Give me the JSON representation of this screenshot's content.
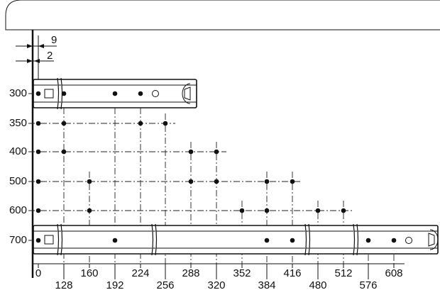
{
  "dimensions": {
    "offset_a": "9",
    "offset_b": "2"
  },
  "rows": [
    "300",
    "350",
    "400",
    "500",
    "600",
    "700"
  ],
  "columns": [
    "0",
    "128",
    "160",
    "192",
    "224",
    "256",
    "288",
    "320",
    "352",
    "384",
    "416",
    "480",
    "512",
    "576",
    "608"
  ]
}
